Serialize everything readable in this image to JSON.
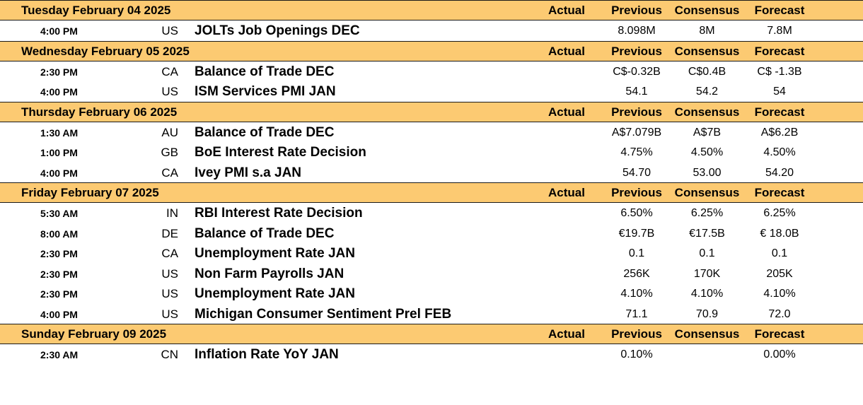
{
  "columns": {
    "actual": "Actual",
    "previous": "Previous",
    "consensus": "Consensus",
    "forecast": "Forecast"
  },
  "days": [
    {
      "date": "Tuesday February 04 2025",
      "events": [
        {
          "time": "4:00 PM",
          "country": "US",
          "event": "JOLTs Job Openings DEC",
          "actual": "",
          "previous": "8.098M",
          "consensus": "8M",
          "forecast": "7.8M"
        }
      ]
    },
    {
      "date": "Wednesday February 05 2025",
      "events": [
        {
          "time": "2:30 PM",
          "country": "CA",
          "event": "Balance of Trade DEC",
          "actual": "",
          "previous": "C$-0.32B",
          "consensus": "C$0.4B",
          "forecast": "C$ -1.3B"
        },
        {
          "time": "4:00 PM",
          "country": "US",
          "event": "ISM Services PMI JAN",
          "actual": "",
          "previous": "54.1",
          "consensus": "54.2",
          "forecast": "54"
        }
      ]
    },
    {
      "date": "Thursday February 06 2025",
      "events": [
        {
          "time": "1:30 AM",
          "country": "AU",
          "event": "Balance of Trade DEC",
          "actual": "",
          "previous": "A$7.079B",
          "consensus": "A$7B",
          "forecast": "A$6.2B"
        },
        {
          "time": "1:00 PM",
          "country": "GB",
          "event": "BoE Interest Rate Decision",
          "actual": "",
          "previous": "4.75%",
          "consensus": "4.50%",
          "forecast": "4.50%"
        },
        {
          "time": "4:00 PM",
          "country": "CA",
          "event": "Ivey PMI s.a JAN",
          "actual": "",
          "previous": "54.70",
          "consensus": "53.00",
          "forecast": "54.20"
        }
      ]
    },
    {
      "date": "Friday February 07 2025",
      "events": [
        {
          "time": "5:30 AM",
          "country": "IN",
          "event": "RBI Interest Rate Decision",
          "actual": "",
          "previous": "6.50%",
          "consensus": "6.25%",
          "forecast": "6.25%"
        },
        {
          "time": "8:00 AM",
          "country": "DE",
          "event": "Balance of Trade DEC",
          "actual": "",
          "previous": "€19.7B",
          "consensus": "€17.5B",
          "forecast": "€ 18.0B"
        },
        {
          "time": "2:30 PM",
          "country": "CA",
          "event": "Unemployment Rate JAN",
          "actual": "",
          "previous": "0.1",
          "consensus": "0.1",
          "forecast": "0.1"
        },
        {
          "time": "2:30 PM",
          "country": "US",
          "event": "Non Farm Payrolls JAN",
          "actual": "",
          "previous": "256K",
          "consensus": "170K",
          "forecast": "205K"
        },
        {
          "time": "2:30 PM",
          "country": "US",
          "event": "Unemployment Rate JAN",
          "actual": "",
          "previous": "4.10%",
          "consensus": "4.10%",
          "forecast": "4.10%"
        },
        {
          "time": "4:00 PM",
          "country": "US",
          "event": "Michigan Consumer Sentiment Prel FEB",
          "actual": "",
          "previous": "71.1",
          "consensus": "70.9",
          "forecast": "72.0"
        }
      ]
    },
    {
      "date": "Sunday February 09 2025",
      "events": [
        {
          "time": "2:30 AM",
          "country": "CN",
          "event": "Inflation Rate YoY JAN",
          "actual": "",
          "previous": "0.10%",
          "consensus": "",
          "forecast": "0.00%"
        }
      ]
    }
  ]
}
